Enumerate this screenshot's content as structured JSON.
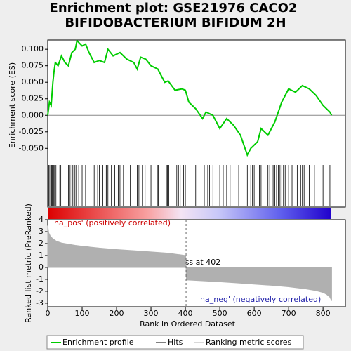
{
  "chart_data": [
    {
      "type": "line",
      "title": "Enrichment plot: GSE21976 CACO2",
      "subtitle": "BIFIDOBACTERIUM BIFIDUM 2H",
      "ylabel": "Enrichment score (ES)",
      "xlim": [
        0,
        865
      ],
      "ylim": [
        -0.072,
        0.114
      ],
      "yticks": [
        {
          "value": 0.1,
          "label": "0.100"
        },
        0.075,
        {
          "value": 0.05,
          "label": "0.050"
        },
        0.025,
        {
          "value": 0,
          "label": "0.000"
        },
        -0.025,
        {
          "value": -0.05,
          "label": "-0.050"
        }
      ],
      "x": [
        0,
        5,
        10,
        15,
        18,
        22,
        30,
        40,
        50,
        60,
        70,
        80,
        85,
        100,
        110,
        120,
        135,
        150,
        165,
        175,
        190,
        210,
        230,
        250,
        260,
        270,
        285,
        300,
        320,
        340,
        350,
        370,
        390,
        400,
        410,
        430,
        450,
        460,
        480,
        500,
        520,
        540,
        560,
        580,
        590,
        610,
        620,
        640,
        660,
        680,
        700,
        720,
        740,
        760,
        780,
        800,
        810,
        820,
        825
      ],
      "series": [
        {
          "name": "Enrichment profile",
          "color": "#00cc00",
          "values": [
            0,
            0.02,
            0.015,
            0.05,
            0.065,
            0.08,
            0.075,
            0.09,
            0.08,
            0.075,
            0.095,
            0.1,
            0.113,
            0.105,
            0.108,
            0.095,
            0.08,
            0.083,
            0.08,
            0.1,
            0.09,
            0.095,
            0.085,
            0.08,
            0.07,
            0.088,
            0.085,
            0.075,
            0.07,
            0.05,
            0.052,
            0.038,
            0.04,
            0.038,
            0.02,
            0.01,
            -0.005,
            0.005,
            0,
            -0.02,
            -0.005,
            -0.015,
            -0.03,
            -0.06,
            -0.05,
            -0.04,
            -0.02,
            -0.03,
            -0.01,
            0.02,
            0.04,
            0.035,
            0.045,
            0.04,
            0.03,
            0.015,
            0.01,
            0.005,
            0
          ]
        }
      ]
    },
    {
      "type": "hits",
      "name": "Hits",
      "color": "#000000",
      "x": [
        3,
        6,
        9,
        11,
        13,
        15,
        17,
        20,
        24,
        35,
        38,
        42,
        60,
        65,
        70,
        73,
        78,
        82,
        90,
        100,
        110,
        135,
        145,
        150,
        160,
        170,
        172,
        175,
        185,
        195,
        205,
        210,
        220,
        240,
        260,
        265,
        275,
        283,
        300,
        320,
        322,
        345,
        348,
        352,
        375,
        380,
        385,
        395,
        400,
        430,
        455,
        460,
        465,
        470,
        480,
        500,
        510,
        520,
        530,
        555,
        580,
        590,
        595,
        600,
        605,
        615,
        620,
        640,
        645,
        655,
        660,
        665,
        670,
        675,
        680,
        685,
        690,
        700,
        710,
        725,
        735,
        740,
        745,
        760,
        775,
        800,
        820
      ]
    },
    {
      "type": "area",
      "ylabel": "Ranked list metric (PreRanked)",
      "xlabel": "Rank in Ordered Dataset",
      "xlim": [
        0,
        865
      ],
      "xticks": [
        0,
        100,
        200,
        300,
        400,
        500,
        600,
        700,
        800
      ],
      "ylim": [
        -3.3,
        4
      ],
      "yticks": [
        4,
        3,
        2,
        1,
        0,
        -1,
        -2,
        -3
      ],
      "zero_cross": 402,
      "annotations": [
        "'na_pos' (positively correlated)",
        "Zero cross at 402",
        "'na_neg' (negatively correlated)"
      ],
      "x": [
        0,
        3,
        8,
        15,
        25,
        40,
        60,
        80,
        100,
        150,
        200,
        250,
        300,
        350,
        400,
        401,
        403,
        450,
        500,
        550,
        600,
        650,
        700,
        750,
        780,
        800,
        810,
        820,
        825
      ],
      "series": [
        {
          "name": "Ranking metric scores",
          "color": "#b0b0b0",
          "values": [
            3.5,
            2.9,
            2.6,
            2.4,
            2.2,
            2.05,
            1.95,
            1.85,
            1.78,
            1.62,
            1.5,
            1.4,
            1.3,
            1.2,
            1.0,
            0.95,
            -1.05,
            -1.12,
            -1.2,
            -1.3,
            -1.4,
            -1.5,
            -1.62,
            -1.8,
            -1.95,
            -2.1,
            -2.25,
            -2.5,
            -2.8
          ]
        }
      ]
    }
  ]
}
